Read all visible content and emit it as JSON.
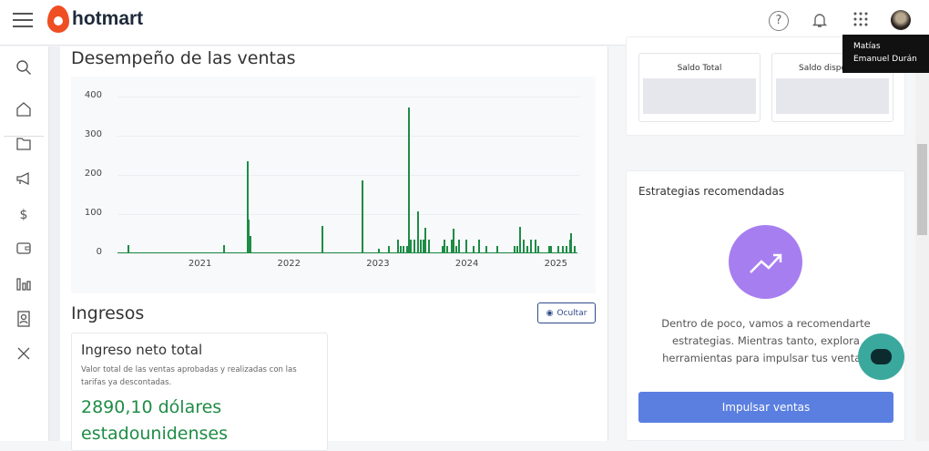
{
  "header": {
    "logo": "hotmart",
    "icons": [
      "menu-icon",
      "help-icon",
      "bell-icon",
      "apps-grid-icon",
      "avatar"
    ]
  },
  "tooltip": {
    "line1": "Matías",
    "line2": "Emanuel Durán"
  },
  "sidebar": {
    "icons": [
      "search-icon",
      "home-icon",
      "folder-icon",
      "megaphone-icon",
      "money-transfer-icon",
      "wallet-icon",
      "bar-chart-icon",
      "contact-card-icon",
      "tools-icon"
    ]
  },
  "sales": {
    "title": "Desempeño de las ventas"
  },
  "chart_data": {
    "type": "bar",
    "title": "",
    "xlabel": "",
    "ylabel": "",
    "ylim": [
      0,
      400
    ],
    "xlim": [
      2020.08,
      2025.25
    ],
    "yticks": [
      "0",
      "100",
      "200",
      "300",
      "400"
    ],
    "xticks": [
      "2021",
      "2022",
      "2023",
      "2024",
      "2025"
    ],
    "grid": true,
    "color": "#1e8c45",
    "x": [
      2020.2,
      2021.28,
      2021.54,
      2021.55,
      2021.57,
      2022.38,
      2022.83,
      2023.02,
      2023.13,
      2023.23,
      2023.26,
      2023.29,
      2023.34,
      2023.36,
      2023.38,
      2023.42,
      2023.46,
      2023.49,
      2023.52,
      2023.54,
      2023.58,
      2023.73,
      2023.76,
      2023.79,
      2023.84,
      2023.86,
      2023.89,
      2023.92,
      2024.0,
      2024.08,
      2024.14,
      2024.23,
      2024.35,
      2024.54,
      2024.57,
      2024.61,
      2024.65,
      2024.69,
      2024.73,
      2024.78,
      2024.81,
      2024.93,
      2024.95,
      2025.04,
      2025.09,
      2025.13,
      2025.17,
      2025.18,
      2025.22
    ],
    "values": [
      20,
      22,
      235,
      85,
      45,
      70,
      185,
      12,
      18,
      35,
      18,
      18,
      18,
      372,
      35,
      35,
      108,
      35,
      35,
      65,
      35,
      18,
      35,
      18,
      35,
      62,
      18,
      35,
      35,
      18,
      35,
      18,
      18,
      18,
      18,
      68,
      35,
      18,
      35,
      35,
      18,
      18,
      18,
      18,
      18,
      18,
      35,
      52,
      18
    ]
  },
  "income": {
    "title": "Ingresos",
    "hide_label": "Ocultar",
    "card_title": "Ingreso neto total",
    "card_desc": "Valor total de las ventas aprobadas y realizadas con las tarifas ya descontadas.",
    "card_value": "2890,10 dólares estadounidenses"
  },
  "balance": {
    "total_label": "Saldo Total",
    "available_label": "Saldo disponible"
  },
  "strategies": {
    "title": "Estrategias recomendadas",
    "text": "Dentro de poco, vamos a recomendarte estrategias. Mientras tanto, explora herramientas para impulsar tus ventas.",
    "button": "Impulsar ventas"
  }
}
